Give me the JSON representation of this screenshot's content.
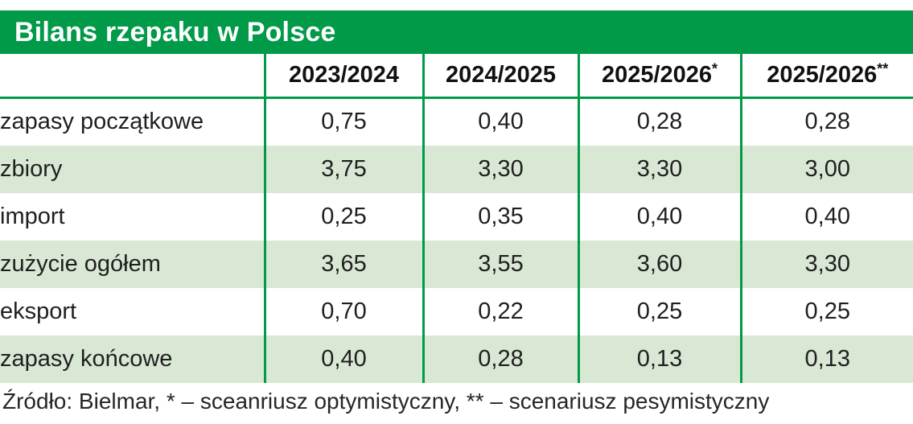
{
  "title": "Bilans rzepaku w Polsce",
  "colors": {
    "header_green": "#009A49",
    "row_alt_green": "#D9E8D4",
    "title_text": "#FFFFFF",
    "body_text": "#1F1F1F"
  },
  "table": {
    "columns": [
      {
        "label": "2023/2024",
        "marker": ""
      },
      {
        "label": "2024/2025",
        "marker": ""
      },
      {
        "label": "2025/2026",
        "marker": "*"
      },
      {
        "label": "2025/2026",
        "marker": "**"
      }
    ],
    "rows": [
      {
        "label": "zapasy początkowe",
        "values": [
          "0,75",
          "0,40",
          "0,28",
          "0,28"
        ]
      },
      {
        "label": "zbiory",
        "values": [
          "3,75",
          "3,30",
          "3,30",
          "3,00"
        ]
      },
      {
        "label": "import",
        "values": [
          "0,25",
          "0,35",
          "0,40",
          "0,40"
        ]
      },
      {
        "label": "zużycie ogółem",
        "values": [
          "3,65",
          "3,55",
          "3,60",
          "3,30"
        ]
      },
      {
        "label": "eksport",
        "values": [
          "0,70",
          "0,22",
          "0,25",
          "0,25"
        ]
      },
      {
        "label": "zapasy końcowe",
        "values": [
          "0,40",
          "0,28",
          "0,13",
          "0,13"
        ]
      }
    ]
  },
  "footer": "Źródło: Bielmar, * – sceanriusz optymistyczny, ** – scenariusz pesymistyczny",
  "chart_data": {
    "type": "table",
    "title": "Bilans rzepaku w Polsce",
    "columns": [
      "2023/2024",
      "2024/2025",
      "2025/2026*",
      "2025/2026**"
    ],
    "row_labels": [
      "zapasy początkowe",
      "zbiory",
      "import",
      "zużycie ogółem",
      "eksport",
      "zapasy końcowe"
    ],
    "values": [
      [
        0.75,
        0.4,
        0.28,
        0.28
      ],
      [
        3.75,
        3.3,
        3.3,
        3.0
      ],
      [
        0.25,
        0.35,
        0.4,
        0.4
      ],
      [
        3.65,
        3.55,
        3.6,
        3.3
      ],
      [
        0.7,
        0.22,
        0.25,
        0.25
      ],
      [
        0.4,
        0.28,
        0.13,
        0.13
      ]
    ],
    "source": "Bielmar",
    "footnotes": {
      "*": "sceanriusz optymistyczny",
      "**": "scenariusz pesymistyczny"
    }
  }
}
